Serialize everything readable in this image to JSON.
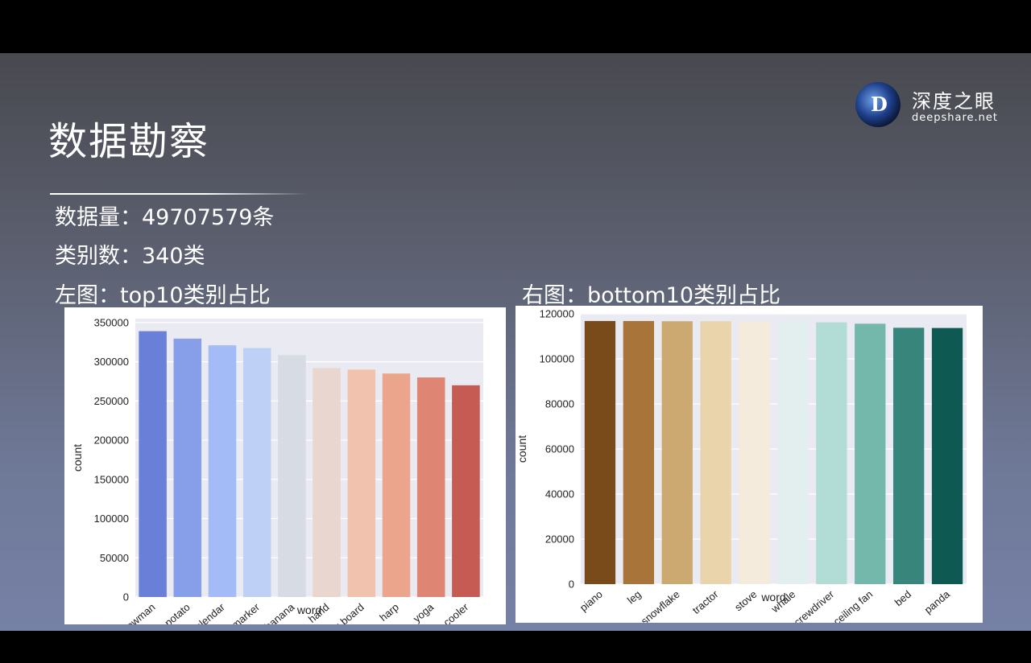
{
  "slide": {
    "title": "数据勘察",
    "data_count": "数据量：49707579条",
    "class_count": "类别数：340类",
    "left_caption": "左图：top10类别占比",
    "right_caption": "右图：bottom10类别占比"
  },
  "logo": {
    "letter": "D",
    "name_cn": "深度之眼",
    "name_en": "deepshare.net"
  },
  "chart_data": [
    {
      "type": "bar",
      "categories": [
        "snowman",
        "potato",
        "calendar",
        "marker",
        "banana",
        "hand",
        "diving board",
        "harp",
        "yoga",
        "cooler"
      ],
      "values": [
        339000,
        329500,
        321000,
        317500,
        308500,
        292000,
        290000,
        285000,
        280000,
        270000
      ],
      "colors": [
        "#6a7fd7",
        "#879fe9",
        "#a3bbf6",
        "#bed0f6",
        "#d6dbe4",
        "#e8d6cf",
        "#f1c3af",
        "#eaa58c",
        "#de8573",
        "#c55b53"
      ],
      "xlabel": "word",
      "ylabel": "count",
      "ylim": [
        0,
        355000
      ],
      "yticks": [
        0,
        50000,
        100000,
        150000,
        200000,
        250000,
        300000,
        350000
      ],
      "grid": true
    },
    {
      "type": "bar",
      "categories": [
        "piano",
        "leg",
        "snowflake",
        "tractor",
        "stove",
        "whale",
        "screwdriver",
        "ceiling fan",
        "bed",
        "panda"
      ],
      "values": [
        116800,
        116800,
        116700,
        116700,
        116600,
        116600,
        116200,
        115600,
        113800,
        113700
      ],
      "colors": [
        "#7a4b1a",
        "#a87439",
        "#cba970",
        "#ead4ab",
        "#f5ebdc",
        "#e3eeef",
        "#b2dcd6",
        "#74b7ab",
        "#38857b",
        "#0e5a52"
      ],
      "xlabel": "word",
      "ylabel": "count",
      "ylim": [
        0,
        120000
      ],
      "yticks": [
        0,
        20000,
        40000,
        60000,
        80000,
        100000,
        120000
      ],
      "grid": true
    }
  ]
}
